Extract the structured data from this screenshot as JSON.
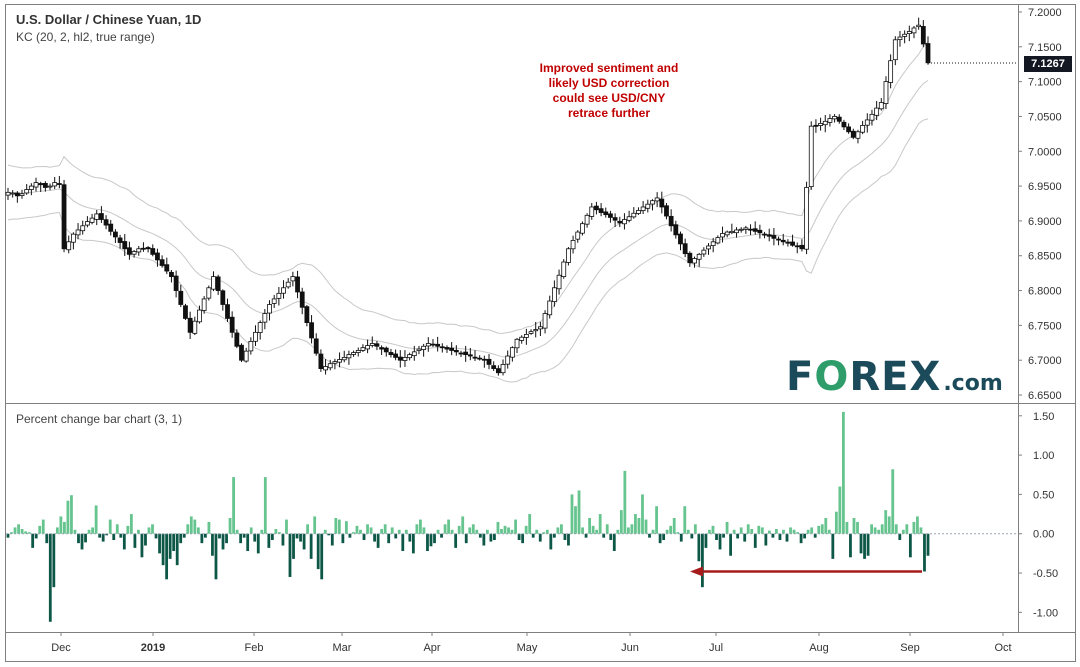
{
  "header": {
    "title": "U.S. Dollar / Chinese Yuan, 1D",
    "indicator": "KC (20, 2, hl2, true range)"
  },
  "annotation": {
    "lines": [
      "Improved sentiment and",
      "likely USD correction",
      "could see USD/CNY",
      "retrace further"
    ]
  },
  "logo": {
    "text_a": "F",
    "text_o": "O",
    "text_b": "REX",
    "text_com": ".com"
  },
  "price_tag": "7.1267",
  "lower_panel_title": "Percent change bar chart (3, 1)",
  "colors": {
    "up": "#66c48f",
    "down": "#0d5747",
    "candle": "#111111",
    "band": "#c8c8c8",
    "arrow": "#a61c1c"
  },
  "chart_data": [
    {
      "type": "candlestick",
      "title": "U.S. Dollar / Chinese Yuan, 1D",
      "ylim": [
        6.64,
        7.21
      ],
      "y_ticks": [
        "7.2000",
        "7.1500",
        "7.1000",
        "7.0500",
        "7.0000",
        "6.9500",
        "6.9000",
        "6.8500",
        "6.8000",
        "6.7500",
        "6.7000",
        "6.6500"
      ],
      "x_ticks": [
        "Dec",
        "2019",
        "Feb",
        "Mar",
        "Apr",
        "May",
        "Jun",
        "Jul",
        "Aug",
        "Sep",
        "Oct"
      ],
      "last_price": 7.1267,
      "close": [
        6.941,
        6.94,
        6.936,
        6.939,
        6.945,
        6.95,
        6.955,
        6.952,
        6.948,
        6.95,
        6.955,
        6.953,
        6.86,
        6.87,
        6.881,
        6.887,
        6.893,
        6.899,
        6.904,
        6.91,
        6.902,
        6.894,
        6.885,
        6.877,
        6.869,
        6.86,
        6.852,
        6.856,
        6.86,
        6.86,
        6.86,
        6.852,
        6.844,
        6.836,
        6.828,
        6.82,
        6.8,
        6.78,
        6.76,
        6.74,
        6.756,
        6.772,
        6.788,
        6.804,
        6.82,
        6.8,
        6.78,
        6.76,
        6.74,
        6.72,
        6.7,
        6.713,
        6.727,
        6.74,
        6.754,
        6.767,
        6.78,
        6.788,
        6.796,
        6.804,
        6.812,
        6.82,
        6.798,
        6.776,
        6.754,
        6.732,
        6.71,
        6.688,
        6.691,
        6.695,
        6.698,
        6.701,
        6.704,
        6.708,
        6.711,
        6.714,
        6.718,
        6.721,
        6.724,
        6.72,
        6.716,
        6.712,
        6.708,
        6.704,
        6.7,
        6.704,
        6.708,
        6.712,
        6.716,
        6.72,
        6.724,
        6.722,
        6.72,
        6.718,
        6.716,
        6.714,
        6.712,
        6.71,
        6.708,
        6.706,
        6.704,
        6.702,
        6.7,
        6.694,
        6.688,
        6.682,
        6.694,
        6.706,
        6.718,
        6.73,
        6.733,
        6.737,
        6.741,
        6.744,
        6.748,
        6.767,
        6.785,
        6.804,
        6.822,
        6.841,
        6.86,
        6.872,
        6.884,
        6.896,
        6.908,
        6.92,
        6.916,
        6.912,
        6.909,
        6.905,
        6.901,
        6.897,
        6.902,
        6.906,
        6.911,
        6.915,
        6.92,
        6.924,
        6.929,
        6.933,
        6.92,
        6.907,
        6.893,
        6.88,
        6.867,
        6.853,
        6.84,
        6.846,
        6.852,
        6.858,
        6.864,
        6.87,
        6.876,
        6.882,
        6.884,
        6.885,
        6.887,
        6.888,
        6.89,
        6.888,
        6.885,
        6.883,
        6.88,
        6.878,
        6.875,
        6.873,
        6.87,
        6.868,
        6.865,
        6.863,
        6.86,
        6.948,
        7.036,
        7.036,
        7.04,
        7.043,
        7.047,
        7.05,
        7.043,
        7.035,
        7.028,
        7.02,
        7.028,
        7.037,
        7.045,
        7.053,
        7.062,
        7.07,
        7.1,
        7.13,
        7.16,
        7.164,
        7.168,
        7.172,
        7.177,
        7.181,
        7.154,
        7.127
      ]
    },
    {
      "type": "bar",
      "title": "Percent change bar chart (3, 1)",
      "ylim": [
        -1.25,
        1.65
      ],
      "y_ticks": [
        "1.50",
        "1.00",
        "0.50",
        "0.00",
        "-0.50",
        "-1.00"
      ],
      "values": [
        -0.05,
        0.02,
        0.08,
        0.12,
        0.06,
        0.03,
        0.02,
        -0.18,
        -0.06,
        0.1,
        0.18,
        -0.12,
        -1.12,
        -0.68,
        0.08,
        0.22,
        0.15,
        0.42,
        0.49,
        0.05,
        -0.12,
        -0.2,
        -0.11,
        0.05,
        0.08,
        0.36,
        -0.05,
        -0.1,
        -0.02,
        0.18,
        -0.08,
        0.12,
        -0.05,
        -0.2,
        0.1,
        0.25,
        -0.18,
        0.05,
        -0.3,
        -0.15,
        0.08,
        0.12,
        -0.06,
        -0.25,
        -0.4,
        -0.58,
        -0.32,
        -0.22,
        -0.4,
        -0.12,
        -0.05,
        0.12,
        0.22,
        0.18,
        0.08,
        -0.12,
        -0.05,
        0.15,
        -0.28,
        -0.58,
        -0.06,
        -0.2,
        -0.12,
        0.2,
        0.72,
        0.05,
        -0.12,
        -0.05,
        -0.22,
        0.08,
        -0.1,
        -0.25,
        0.05,
        0.72,
        -0.18,
        -0.08,
        0.06,
        0.02,
        -0.15,
        0.18,
        -0.55,
        -0.32,
        -0.06,
        -0.1,
        -0.2,
        0.12,
        -0.32,
        0.22,
        -0.45,
        -0.58,
        0.05,
        -0.02,
        -0.15,
        0.2,
        0.18,
        -0.12,
        0.16,
        -0.05,
        0.02,
        0.1,
        0.05,
        -0.08,
        0.12,
        0.08,
        -0.1,
        -0.18,
        0.06,
        0.12,
        -0.12,
        0.08,
        -0.06,
        0.05,
        -0.22,
        0.05,
        -0.1,
        -0.25,
        0.12,
        0.18,
        0.08,
        -0.22,
        -0.16,
        -0.12,
        0.05,
        -0.05,
        0.12,
        0.18,
        0.05,
        -0.18,
        0.1,
        0.22,
        -0.12,
        0.08,
        0.12,
        0.05,
        -0.05,
        -0.15,
        0.05,
        -0.1,
        -0.08,
        0.15,
        0.06,
        0.1,
        0.08,
        0.05,
        0.18,
        -0.08,
        -0.12,
        0.1,
        0.25,
        -0.05,
        0.05,
        -0.1,
        0.02,
        0.05,
        -0.2,
        -0.05,
        0.08,
        0.12,
        -0.08,
        -0.15,
        0.5,
        0.35,
        0.55,
        0.08,
        -0.05,
        0.2,
        0.1,
        0.05,
        0.25,
        -0.05,
        0.12,
        -0.08,
        -0.22,
        0.05,
        0.3,
        0.8,
        0.08,
        0.12,
        0.25,
        0.2,
        0.5,
        0.18,
        -0.05,
        0.05,
        0.35,
        -0.12,
        -0.08,
        0.05,
        0.1,
        0.2,
        0.02,
        -0.1,
        0.35,
        0.05,
        -0.06,
        0.12,
        -0.35,
        -0.68,
        -0.18,
        0.05,
        0.1,
        -0.08,
        -0.2,
        -0.05,
        0.15,
        -0.28,
        0.05,
        -0.06,
        0.08,
        -0.1,
        0.12,
        0.06,
        -0.18,
        0.1,
        0.08,
        -0.15,
        0.04,
        -0.05,
        0.06,
        -0.08,
        0.05,
        -0.1,
        0.08,
        0.05,
        0.02,
        -0.12,
        -0.06,
        0.05,
        0.08,
        -0.05,
        0.1,
        0.12,
        0.2,
        0.05,
        -0.32,
        0.28,
        0.6,
        1.55,
        0.15,
        -0.3,
        0.2,
        0.15,
        -0.25,
        -0.32,
        -0.28,
        0.12,
        0.08,
        0.05,
        0.12,
        0.3,
        0.22,
        0.82,
        0.12,
        -0.08,
        0.05,
        0.12,
        -0.3,
        0.15,
        0.22,
        0.08,
        -0.48,
        -0.28
      ]
    }
  ]
}
